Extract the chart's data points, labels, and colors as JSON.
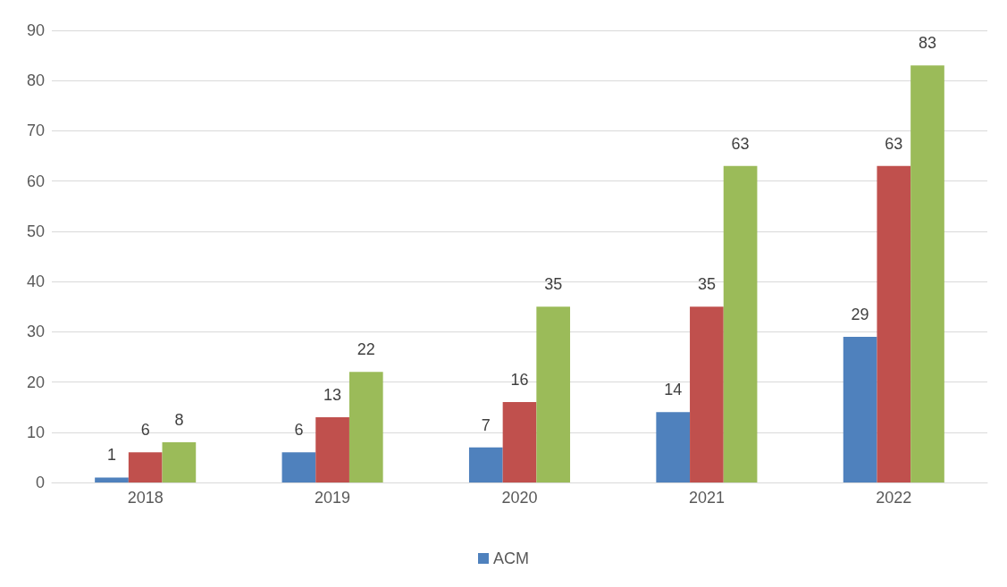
{
  "chart_data": {
    "type": "bar",
    "categories": [
      "2018",
      "2019",
      "2020",
      "2021",
      "2022"
    ],
    "series": [
      {
        "name": "ACM",
        "color": "#4f81bd",
        "values": [
          1,
          6,
          7,
          14,
          29
        ]
      },
      {
        "color": "#c0504d",
        "values": [
          6,
          13,
          16,
          35,
          63
        ]
      },
      {
        "color": "#9bbb59",
        "values": [
          8,
          22,
          35,
          63,
          83
        ]
      }
    ],
    "ylim": [
      0,
      90
    ],
    "yticks": [
      0,
      10,
      20,
      30,
      40,
      50,
      60,
      70,
      80,
      90
    ],
    "grid": "y",
    "legend": "bottom",
    "data_labels": true
  }
}
